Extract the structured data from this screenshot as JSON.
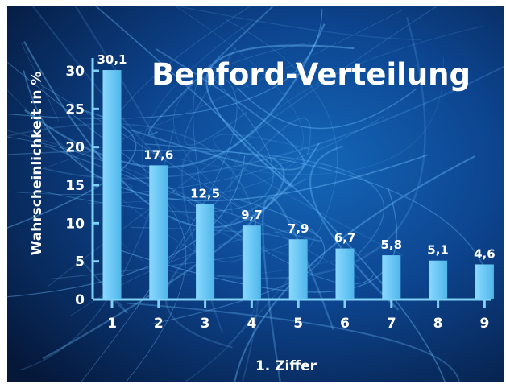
{
  "colors": {
    "background_dark": "#061a3e",
    "background_mid": "#0e4f9a",
    "bar": "#5cc3f3",
    "axis": "#7fd0f5",
    "text": "#ffffff"
  },
  "chart_data": {
    "type": "bar",
    "title": "Benford-Verteilung",
    "xlabel": "1. Ziffer",
    "ylabel": "Wahrscheinlichkeit in %",
    "categories": [
      "1",
      "2",
      "3",
      "4",
      "5",
      "6",
      "7",
      "8",
      "9"
    ],
    "values": [
      30.1,
      17.6,
      12.5,
      9.7,
      7.9,
      6.7,
      5.8,
      5.1,
      4.6
    ],
    "value_labels": [
      "30,1",
      "17,6",
      "12,5",
      "9,7",
      "7,9",
      "6,7",
      "5,8",
      "5,1",
      "4,6"
    ],
    "ylim": [
      0,
      30
    ],
    "yticks": [
      0,
      5,
      10,
      15,
      20,
      25,
      30
    ],
    "grid": false,
    "legend": "none"
  }
}
